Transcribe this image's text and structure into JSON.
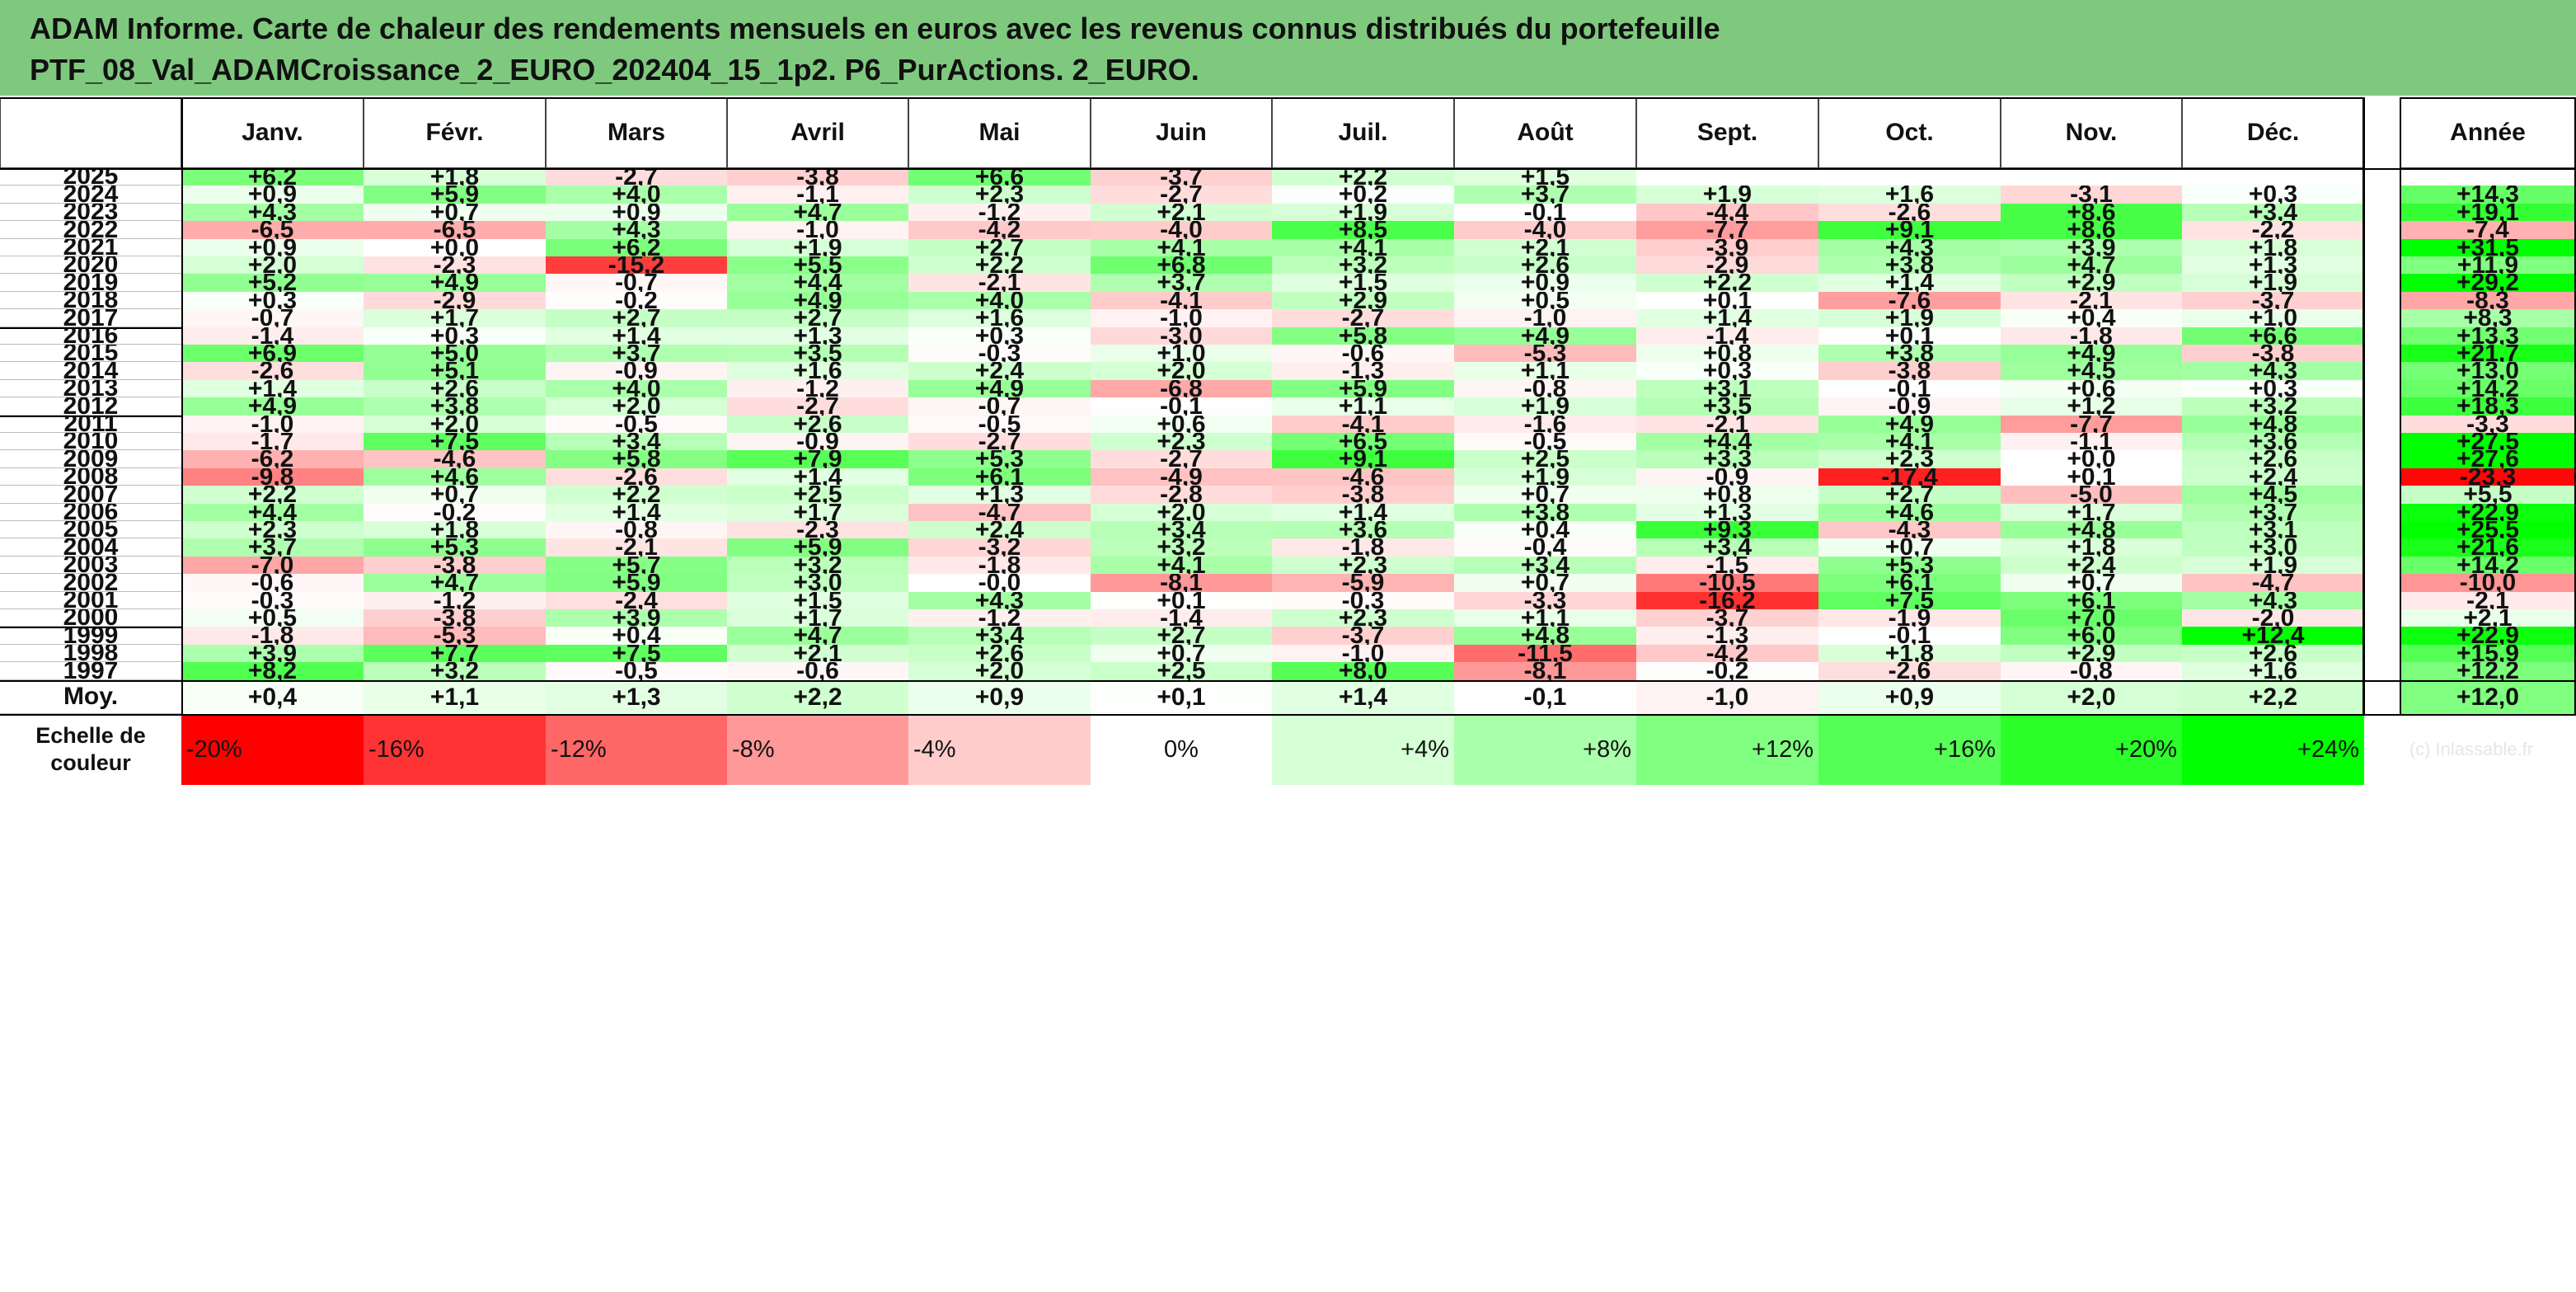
{
  "title": {
    "line1": "ADAM Informe. Carte de chaleur des rendements mensuels en euros avec les revenus connus distribués du portefeuille",
    "line2": "PTF_08_Val_ADAMCroissance_2_EURO_202404_15_1p2. P6_PurActions. 2_EURO."
  },
  "chart_data": {
    "type": "heatmap",
    "columns": [
      "Janv.",
      "Févr.",
      "Mars",
      "Avril",
      "Mai",
      "Juin",
      "Juil.",
      "Août",
      "Sept.",
      "Oct.",
      "Nov.",
      "Déc."
    ],
    "year_column": "Année",
    "watermark": "(c) Inlassable.fr",
    "rows": [
      {
        "label": "2025",
        "values": [
          "+6,2",
          "+1,8",
          "-2,7",
          "-3,8",
          "+6,6",
          "-3,7",
          "+2,2",
          "+1,5",
          "",
          "",
          "",
          ""
        ],
        "year": ""
      },
      {
        "label": "2024",
        "values": [
          "+0,9",
          "+5,9",
          "+4,0",
          "-1,1",
          "+2,3",
          "-2,7",
          "+0,2",
          "+3,7",
          "+1,9",
          "+1,6",
          "-3,1",
          "+0,3"
        ],
        "year": "+14,3"
      },
      {
        "label": "2023",
        "values": [
          "+4,3",
          "+0,7",
          "+0,9",
          "+4,7",
          "-1,2",
          "+2,1",
          "+1,9",
          "-0,1",
          "-4,4",
          "-2,6",
          "+8,6",
          "+3,4"
        ],
        "year": "+19,1"
      },
      {
        "label": "2022",
        "values": [
          "-6,5",
          "-6,5",
          "+4,3",
          "-1,0",
          "-4,2",
          "-4,0",
          "+8,5",
          "-4,0",
          "-7,7",
          "+9,1",
          "+8,6",
          "-2,2"
        ],
        "year": "-7,4"
      },
      {
        "label": "2021",
        "values": [
          "+0,9",
          "+0,0",
          "+6,2",
          "+1,9",
          "+2,7",
          "+4,1",
          "+4,1",
          "+2,1",
          "-3,9",
          "+4,3",
          "+3,9",
          "+1,8"
        ],
        "year": "+31,5"
      },
      {
        "label": "2020",
        "values": [
          "+2,0",
          "-2,3",
          "-15,2",
          "+5,5",
          "+2,2",
          "+6,8",
          "+3,2",
          "+2,6",
          "-2,9",
          "+3,8",
          "+4,7",
          "+1,3"
        ],
        "year": "+11,9"
      },
      {
        "label": "2019",
        "values": [
          "+5,2",
          "+4,9",
          "-0,7",
          "+4,4",
          "-2,1",
          "+3,7",
          "+1,5",
          "+0,9",
          "+2,2",
          "+1,4",
          "+2,9",
          "+1,9"
        ],
        "year": "+29,2"
      },
      {
        "label": "2018",
        "values": [
          "+0,3",
          "-2,9",
          "-0,2",
          "+4,9",
          "+4,0",
          "-4,1",
          "+2,9",
          "+0,5",
          "+0,1",
          "-7,6",
          "-2,1",
          "-3,7"
        ],
        "year": "-8,3"
      },
      {
        "label": "2017",
        "values": [
          "-0,7",
          "+1,7",
          "+2,7",
          "+2,7",
          "+1,6",
          "-1,0",
          "-2,7",
          "-1,0",
          "+1,4",
          "+1,9",
          "+0,4",
          "+1,0"
        ],
        "year": "+8,3"
      },
      {
        "label": "2016",
        "values": [
          "-1,4",
          "+0,3",
          "+1,4",
          "+1,3",
          "+0,3",
          "-3,0",
          "+5,8",
          "+4,9",
          "-1,4",
          "+0,1",
          "-1,8",
          "+6,6"
        ],
        "year": "+13,3"
      },
      {
        "label": "2015",
        "values": [
          "+6,9",
          "+5,0",
          "+3,7",
          "+3,5",
          "-0,3",
          "+1,0",
          "-0,6",
          "-5,3",
          "+0,8",
          "+3,8",
          "+4,9",
          "-3,8"
        ],
        "year": "+21,7"
      },
      {
        "label": "2014",
        "values": [
          "-2,6",
          "+5,1",
          "-0,9",
          "+1,6",
          "+2,4",
          "+2,0",
          "-1,3",
          "+1,1",
          "+0,3",
          "-3,8",
          "+4,5",
          "+4,3"
        ],
        "year": "+13,0"
      },
      {
        "label": "2013",
        "values": [
          "+1,4",
          "+2,6",
          "+4,0",
          "-1,2",
          "+4,9",
          "-6,8",
          "+5,9",
          "-0,8",
          "+3,1",
          "-0,1",
          "+0,6",
          "+0,3"
        ],
        "year": "+14,2"
      },
      {
        "label": "2012",
        "values": [
          "+4,9",
          "+3,8",
          "+2,0",
          "-2,7",
          "-0,7",
          "-0,1",
          "+1,1",
          "+1,9",
          "+3,5",
          "-0,9",
          "+1,2",
          "+3,2"
        ],
        "year": "+18,3"
      },
      {
        "label": "2011",
        "values": [
          "-1,0",
          "+2,0",
          "-0,5",
          "+2,6",
          "-0,5",
          "+0,6",
          "-4,1",
          "-1,6",
          "-2,1",
          "+4,9",
          "-7,7",
          "+4,8"
        ],
        "year": "-3,3"
      },
      {
        "label": "2010",
        "values": [
          "-1,7",
          "+7,5",
          "+3,4",
          "-0,9",
          "-2,7",
          "+2,3",
          "+6,5",
          "-0,5",
          "+4,4",
          "+4,1",
          "-1,1",
          "+3,6"
        ],
        "year": "+27,5"
      },
      {
        "label": "2009",
        "values": [
          "-6,2",
          "-4,6",
          "+5,8",
          "+7,9",
          "+5,3",
          "-2,7",
          "+9,1",
          "+2,5",
          "+3,3",
          "+2,3",
          "+0,0",
          "+2,6"
        ],
        "year": "+27,6"
      },
      {
        "label": "2008",
        "values": [
          "-9,8",
          "+4,6",
          "-2,6",
          "+1,4",
          "+6,1",
          "-4,9",
          "-4,6",
          "+1,9",
          "-0,9",
          "-17,4",
          "+0,1",
          "+2,4"
        ],
        "year": "-23,3"
      },
      {
        "label": "2007",
        "values": [
          "+2,2",
          "+0,7",
          "+2,2",
          "+2,5",
          "+1,3",
          "-2,8",
          "-3,8",
          "+0,7",
          "+0,8",
          "+2,7",
          "-5,0",
          "+4,5"
        ],
        "year": "+5,5"
      },
      {
        "label": "2006",
        "values": [
          "+4,4",
          "-0,2",
          "+1,4",
          "+1,7",
          "-4,7",
          "+2,0",
          "+1,4",
          "+3,8",
          "+1,3",
          "+4,6",
          "+1,7",
          "+3,7"
        ],
        "year": "+22,9"
      },
      {
        "label": "2005",
        "values": [
          "+2,3",
          "+1,8",
          "-0,8",
          "-2,3",
          "+2,4",
          "+3,4",
          "+3,6",
          "+0,4",
          "+9,3",
          "-4,3",
          "+4,8",
          "+3,1"
        ],
        "year": "+25,5"
      },
      {
        "label": "2004",
        "values": [
          "+3,7",
          "+5,3",
          "-2,1",
          "+5,9",
          "-3,2",
          "+3,2",
          "-1,8",
          "-0,4",
          "+3,4",
          "+0,7",
          "+1,8",
          "+3,0"
        ],
        "year": "+21,6"
      },
      {
        "label": "2003",
        "values": [
          "-7,0",
          "-3,8",
          "+5,7",
          "+3,2",
          "-1,8",
          "+4,1",
          "+2,3",
          "+3,4",
          "-1,5",
          "+5,3",
          "+2,4",
          "+1,9"
        ],
        "year": "+14,2"
      },
      {
        "label": "2002",
        "values": [
          "-0,6",
          "+4,7",
          "+5,9",
          "+3,0",
          "-0,0",
          "-8,1",
          "-5,9",
          "+0,7",
          "-10,5",
          "+6,1",
          "+0,7",
          "-4,7"
        ],
        "year": "-10,0"
      },
      {
        "label": "2001",
        "values": [
          "-0,3",
          "-1,2",
          "-2,4",
          "+1,5",
          "+4,3",
          "+0,1",
          "-0,3",
          "-3,3",
          "-16,2",
          "+7,5",
          "+6,1",
          "+4,3"
        ],
        "year": "-2,1"
      },
      {
        "label": "2000",
        "values": [
          "+0,5",
          "-3,8",
          "+3,9",
          "+1,7",
          "-1,2",
          "-1,4",
          "+2,3",
          "+1,1",
          "-3,7",
          "-1,9",
          "+7,0",
          "-2,0"
        ],
        "year": "+2,1"
      },
      {
        "label": "1999",
        "values": [
          "-1,8",
          "-5,3",
          "+0,4",
          "+4,7",
          "+3,4",
          "+2,7",
          "-3,7",
          "+4,8",
          "-1,3",
          "-0,1",
          "+6,0",
          "+12,4"
        ],
        "year": "+22,9"
      },
      {
        "label": "1998",
        "values": [
          "+3,9",
          "+7,7",
          "+7,5",
          "+2,1",
          "+2,6",
          "+0,7",
          "-1,0",
          "-11,5",
          "-4,2",
          "+1,8",
          "+2,9",
          "+2,6"
        ],
        "year": "+15,9"
      },
      {
        "label": "1997",
        "values": [
          "+8,2",
          "+3,2",
          "-0,5",
          "-0,6",
          "+2,0",
          "+2,5",
          "+8,0",
          "-8,1",
          "-0,2",
          "-2,6",
          "-0,8",
          "+1,6"
        ],
        "year": "+12,2"
      }
    ],
    "average": {
      "label": "Moy.",
      "values": [
        "+0,4",
        "+1,1",
        "+1,3",
        "+2,2",
        "+0,9",
        "+0,1",
        "+1,4",
        "-0,1",
        "-1,0",
        "+0,9",
        "+2,0",
        "+2,2"
      ],
      "year": "+12,0"
    },
    "scale": {
      "label": "Echelle de couleur",
      "steps": [
        "-20%",
        "-16%",
        "-12%",
        "-8%",
        "-4%",
        "0%",
        "+4%",
        "+8%",
        "+12%",
        "+16%",
        "+20%",
        "+24%"
      ]
    },
    "colors": {
      "title_bg": "#7fc97f",
      "negative_max": "#ff0000",
      "positive_max": "#00ff00",
      "neutral": "#ffffff"
    }
  }
}
